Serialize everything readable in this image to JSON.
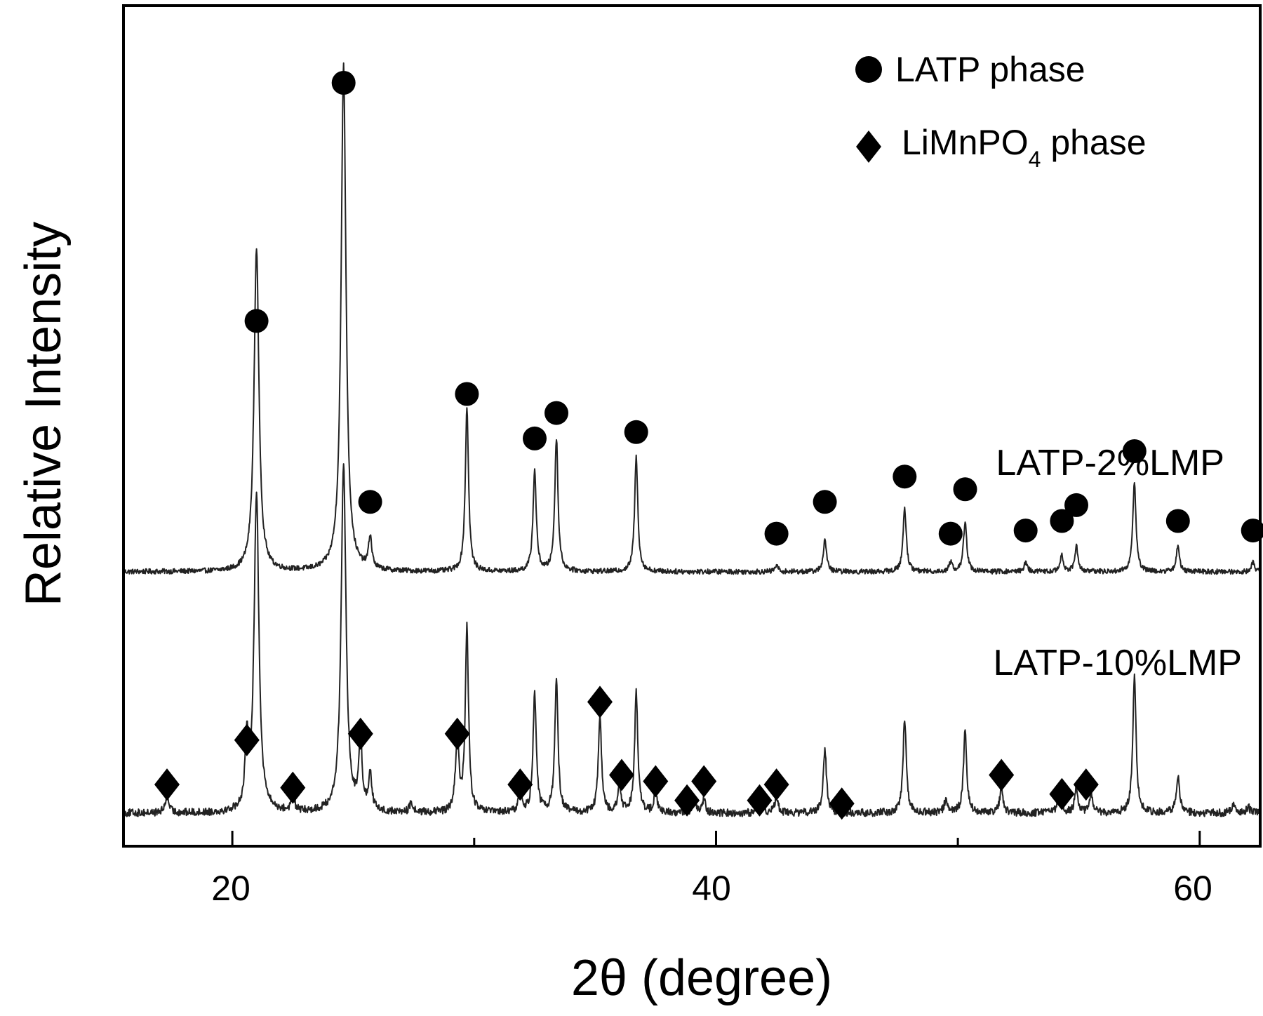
{
  "chart_data": {
    "type": "line",
    "xlabel": "2θ (degree)",
    "ylabel": "Relative Intensity",
    "xlim": [
      15.5,
      62.5
    ],
    "xticks": [
      20,
      40,
      60
    ],
    "y_ticks_shown": false,
    "grid": false,
    "legend": {
      "placement": "top-right",
      "entries": [
        {
          "marker": "circle",
          "label": "LATP phase"
        },
        {
          "marker": "diamond",
          "label_main": "LiMnPO",
          "label_sub": "4",
          "label_end": " phase"
        }
      ]
    },
    "series": [
      {
        "name": "LATP-2%LMP",
        "baseline": 0.42,
        "noise": 0.004,
        "peaks": [
          {
            "x": 21.0,
            "h": 0.51,
            "w": 0.12
          },
          {
            "x": 24.6,
            "h": 0.8,
            "w": 0.12
          },
          {
            "x": 25.7,
            "h": 0.05,
            "w": 0.08
          },
          {
            "x": 29.7,
            "h": 0.26,
            "w": 0.08
          },
          {
            "x": 32.5,
            "h": 0.16,
            "w": 0.08
          },
          {
            "x": 33.4,
            "h": 0.21,
            "w": 0.08
          },
          {
            "x": 36.7,
            "h": 0.18,
            "w": 0.08
          },
          {
            "x": 42.5,
            "h": 0.01,
            "w": 0.08
          },
          {
            "x": 44.5,
            "h": 0.05,
            "w": 0.08
          },
          {
            "x": 47.8,
            "h": 0.1,
            "w": 0.08
          },
          {
            "x": 49.7,
            "h": 0.015,
            "w": 0.08
          },
          {
            "x": 50.3,
            "h": 0.08,
            "w": 0.08
          },
          {
            "x": 52.8,
            "h": 0.015,
            "w": 0.08
          },
          {
            "x": 54.3,
            "h": 0.025,
            "w": 0.08
          },
          {
            "x": 54.9,
            "h": 0.04,
            "w": 0.08
          },
          {
            "x": 57.3,
            "h": 0.14,
            "w": 0.08
          },
          {
            "x": 59.1,
            "h": 0.04,
            "w": 0.08
          },
          {
            "x": 62.2,
            "h": 0.015,
            "w": 0.08
          }
        ],
        "markers": [
          {
            "x": 21.0,
            "y": 0.815
          },
          {
            "x": 24.6,
            "y": 1.19
          },
          {
            "x": 25.7,
            "y": 0.53
          },
          {
            "x": 29.7,
            "y": 0.7
          },
          {
            "x": 32.5,
            "y": 0.63
          },
          {
            "x": 33.4,
            "y": 0.67
          },
          {
            "x": 36.7,
            "y": 0.64
          },
          {
            "x": 42.5,
            "y": 0.48
          },
          {
            "x": 44.5,
            "y": 0.53
          },
          {
            "x": 47.8,
            "y": 0.57
          },
          {
            "x": 49.7,
            "y": 0.48
          },
          {
            "x": 50.3,
            "y": 0.55
          },
          {
            "x": 52.8,
            "y": 0.485
          },
          {
            "x": 54.3,
            "y": 0.5
          },
          {
            "x": 54.9,
            "y": 0.525
          },
          {
            "x": 57.3,
            "y": 0.61
          },
          {
            "x": 59.1,
            "y": 0.5
          },
          {
            "x": 62.2,
            "y": 0.485
          }
        ]
      },
      {
        "name": "LATP-10%LMP",
        "baseline": 0.04,
        "noise": 0.006,
        "peaks": [
          {
            "x": 17.3,
            "h": 0.03,
            "w": 0.08
          },
          {
            "x": 20.6,
            "h": 0.1,
            "w": 0.08
          },
          {
            "x": 21.0,
            "h": 0.5,
            "w": 0.12
          },
          {
            "x": 22.5,
            "h": 0.025,
            "w": 0.08
          },
          {
            "x": 24.6,
            "h": 0.55,
            "w": 0.12
          },
          {
            "x": 25.3,
            "h": 0.11,
            "w": 0.08
          },
          {
            "x": 25.7,
            "h": 0.06,
            "w": 0.08
          },
          {
            "x": 27.4,
            "h": 0.015,
            "w": 0.08
          },
          {
            "x": 29.3,
            "h": 0.12,
            "w": 0.08
          },
          {
            "x": 29.7,
            "h": 0.29,
            "w": 0.08
          },
          {
            "x": 31.9,
            "h": 0.035,
            "w": 0.08
          },
          {
            "x": 32.5,
            "h": 0.19,
            "w": 0.08
          },
          {
            "x": 33.4,
            "h": 0.21,
            "w": 0.08
          },
          {
            "x": 35.2,
            "h": 0.15,
            "w": 0.08
          },
          {
            "x": 36.0,
            "h": 0.04,
            "w": 0.08
          },
          {
            "x": 36.7,
            "h": 0.19,
            "w": 0.08
          },
          {
            "x": 37.5,
            "h": 0.03,
            "w": 0.08
          },
          {
            "x": 39.1,
            "h": 0.02,
            "w": 0.08
          },
          {
            "x": 39.5,
            "h": 0.02,
            "w": 0.08
          },
          {
            "x": 41.9,
            "h": 0.02,
            "w": 0.08
          },
          {
            "x": 42.5,
            "h": 0.025,
            "w": 0.08
          },
          {
            "x": 44.5,
            "h": 0.1,
            "w": 0.08
          },
          {
            "x": 47.8,
            "h": 0.15,
            "w": 0.08
          },
          {
            "x": 49.5,
            "h": 0.02,
            "w": 0.08
          },
          {
            "x": 50.3,
            "h": 0.13,
            "w": 0.08
          },
          {
            "x": 51.8,
            "h": 0.04,
            "w": 0.08
          },
          {
            "x": 54.2,
            "h": 0.04,
            "w": 0.08
          },
          {
            "x": 54.9,
            "h": 0.04,
            "w": 0.08
          },
          {
            "x": 55.5,
            "h": 0.03,
            "w": 0.08
          },
          {
            "x": 57.3,
            "h": 0.22,
            "w": 0.08
          },
          {
            "x": 59.1,
            "h": 0.06,
            "w": 0.08
          },
          {
            "x": 61.4,
            "h": 0.015,
            "w": 0.08
          },
          {
            "x": 62.0,
            "h": 0.01,
            "w": 0.08
          }
        ],
        "markers": [
          {
            "x": 17.3,
            "y": 0.085
          },
          {
            "x": 20.6,
            "y": 0.155
          },
          {
            "x": 22.5,
            "y": 0.08
          },
          {
            "x": 25.3,
            "y": 0.165
          },
          {
            "x": 29.3,
            "y": 0.165
          },
          {
            "x": 31.9,
            "y": 0.085
          },
          {
            "x": 35.2,
            "y": 0.215
          },
          {
            "x": 36.1,
            "y": 0.1
          },
          {
            "x": 37.5,
            "y": 0.09
          },
          {
            "x": 38.8,
            "y": 0.06
          },
          {
            "x": 39.5,
            "y": 0.09
          },
          {
            "x": 41.8,
            "y": 0.06
          },
          {
            "x": 42.5,
            "y": 0.085
          },
          {
            "x": 45.2,
            "y": 0.055
          },
          {
            "x": 51.8,
            "y": 0.1
          },
          {
            "x": 54.3,
            "y": 0.07
          },
          {
            "x": 55.3,
            "y": 0.085
          }
        ]
      }
    ]
  },
  "labels": {
    "xlabel": "2θ (degree)",
    "ylabel": "Relative Intensity",
    "tick_20": "20",
    "tick_40": "40",
    "tick_60": "60",
    "series_top": "LATP-2%LMP",
    "series_bottom": "LATP-10%LMP",
    "legend_latp": "LATP phase",
    "legend_lmp_main": "LiMnPO",
    "legend_lmp_sub": "4",
    "legend_lmp_end": " phase"
  }
}
